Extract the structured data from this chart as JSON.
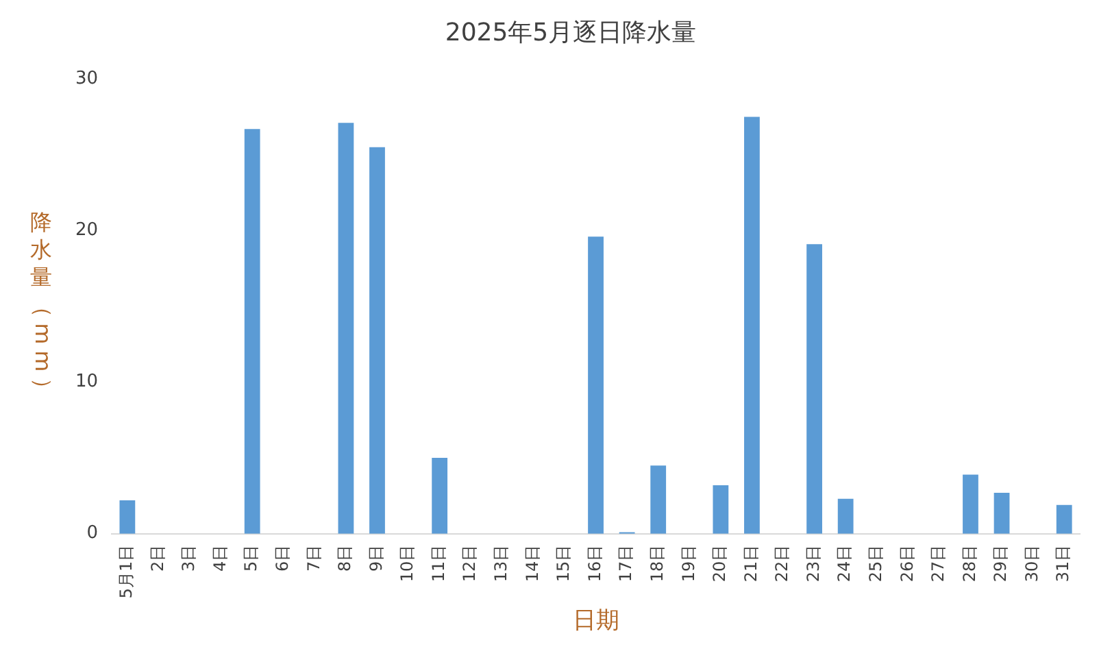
{
  "chart_data": {
    "type": "bar",
    "title": "2025年5月逐日降水量",
    "xlabel": "日期",
    "ylabel": "降水量（mm）",
    "categories": [
      "5月1日",
      "2日",
      "3日",
      "4日",
      "5日",
      "6日",
      "7日",
      "8日",
      "9日",
      "10日",
      "11日",
      "12日",
      "13日",
      "14日",
      "15日",
      "16日",
      "17日",
      "18日",
      "19日",
      "20日",
      "21日",
      "22日",
      "23日",
      "24日",
      "25日",
      "26日",
      "27日",
      "28日",
      "29日",
      "30日",
      "31日"
    ],
    "values": [
      2.2,
      0,
      0,
      0,
      26.7,
      0,
      0,
      27.1,
      25.5,
      0,
      5.0,
      0,
      0,
      0,
      0,
      19.6,
      0.1,
      4.5,
      0,
      3.2,
      27.5,
      0,
      19.1,
      2.3,
      0,
      0,
      0,
      3.9,
      2.7,
      0,
      1.9
    ],
    "color": "#5b9bd5",
    "ylim": [
      0,
      30
    ],
    "yticks": [
      0,
      10,
      20,
      30
    ],
    "grid": false,
    "legend": false
  }
}
